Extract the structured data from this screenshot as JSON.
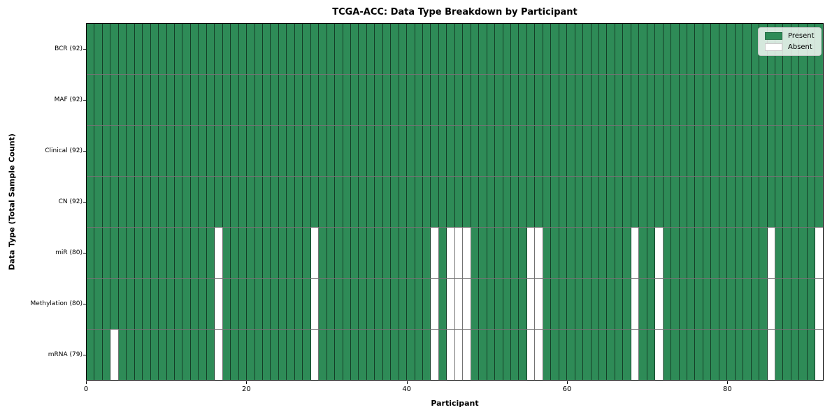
{
  "figure": {
    "title": "TCGA-ACC: Data Type Breakdown by Participant",
    "xlabel": "Participant",
    "ylabel": "Data Type (Total Sample Count)"
  },
  "legend_items": [
    {
      "label": "Present",
      "color": "#2e8b57"
    },
    {
      "label": "Absent",
      "color": "#ffffff"
    }
  ],
  "chart_data": {
    "type": "heatmap",
    "title": "TCGA-ACC: Data Type Breakdown by Participant",
    "xlabel": "Participant",
    "ylabel": "Data Type (Total Sample Count)",
    "n_participants": 92,
    "x_ticks": [
      0,
      20,
      40,
      60,
      80
    ],
    "present_color": "#2e8b57",
    "absent_color": "#ffffff",
    "grid": true,
    "legend_position": "upper right",
    "rows": [
      {
        "data_type": "BCR",
        "label": "BCR (92)",
        "present_count": 92,
        "absent_participants": []
      },
      {
        "data_type": "MAF",
        "label": "MAF (92)",
        "present_count": 92,
        "absent_participants": []
      },
      {
        "data_type": "Clinical",
        "label": "Clinical (92)",
        "present_count": 92,
        "absent_participants": []
      },
      {
        "data_type": "CN",
        "label": "CN (92)",
        "present_count": 92,
        "absent_participants": []
      },
      {
        "data_type": "miR",
        "label": "miR (80)",
        "present_count": 80,
        "absent_participants": [
          16,
          28,
          43,
          45,
          46,
          47,
          55,
          56,
          68,
          71,
          85,
          91
        ]
      },
      {
        "data_type": "Methylation",
        "label": "Methylation (80)",
        "present_count": 80,
        "absent_participants": [
          16,
          28,
          43,
          45,
          46,
          47,
          55,
          56,
          68,
          71,
          85,
          91
        ]
      },
      {
        "data_type": "mRNA",
        "label": "mRNA (79)",
        "present_count": 79,
        "absent_participants": [
          3,
          16,
          28,
          43,
          45,
          46,
          47,
          55,
          56,
          68,
          71,
          85,
          91
        ]
      }
    ]
  }
}
